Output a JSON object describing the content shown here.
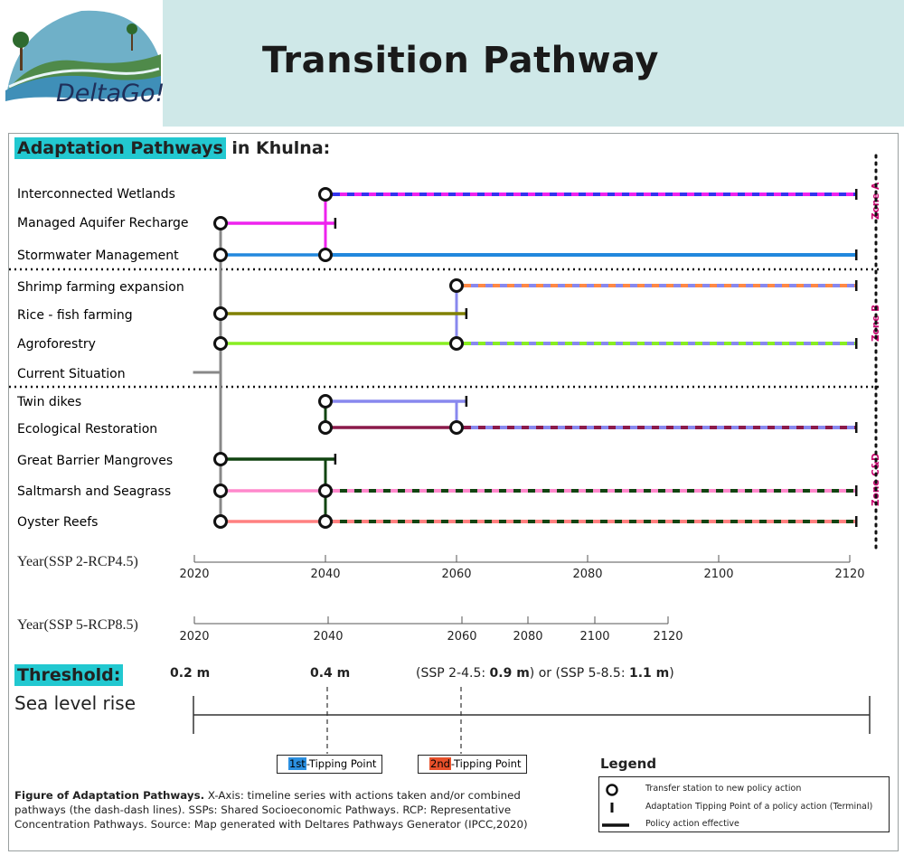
{
  "header": {
    "logo_text": "DeltaGo!",
    "title": "Transition Pathway"
  },
  "heading": {
    "highlight": "Adaptation Pathways",
    "rest": " in Khulna:"
  },
  "zones": [
    "Zone A",
    "Zone B",
    "Zone C&D"
  ],
  "colors": {
    "header_bg": "#cfe8e8",
    "highlight": "#22c8d0",
    "zone_label": "#c8006e",
    "first_tipping": "#2b8fe0",
    "second_tipping": "#e8502a"
  },
  "chart_data": {
    "type": "adaptation-pathways",
    "x_axis_ssp245": {
      "label": "Year(SSP 2-RCP4.5)",
      "ticks": [
        2020,
        2040,
        2060,
        2080,
        2100,
        2120
      ]
    },
    "x_axis_ssp585": {
      "label": "Year(SSP 5-RCP8.5)",
      "ticks": [
        2020,
        2040,
        2060,
        2080,
        2100,
        2120
      ]
    },
    "actions": [
      {
        "name": "Interconnected Wetlands",
        "color": "#3333ee",
        "zone": "Zone A"
      },
      {
        "name": "Managed Aquifer Recharge",
        "color": "#ee22ee",
        "zone": "Zone A"
      },
      {
        "name": "Stormwater Management",
        "color": "#2288dd",
        "zone": "Zone A"
      },
      {
        "name": "Shrimp farming expansion",
        "color": "#ff8844",
        "zone": "Zone B"
      },
      {
        "name": "Rice - fish farming",
        "color": "#808000",
        "zone": "Zone B"
      },
      {
        "name": "Agroforestry",
        "color": "#88ee22",
        "zone": "Zone B"
      },
      {
        "name": "Current Situation",
        "color": "#888888",
        "zone": ""
      },
      {
        "name": "Twin dikes",
        "color": "#8888ee",
        "zone": "Zone C&D"
      },
      {
        "name": "Ecological Restoration",
        "color": "#8b1a4a",
        "zone": "Zone C&D"
      },
      {
        "name": "Great Barrier Mangroves",
        "color": "#114411",
        "zone": "Zone C&D"
      },
      {
        "name": "Saltmarsh and Seagrass",
        "color": "#ff88cc",
        "zone": "Zone C&D"
      },
      {
        "name": "Oyster Reefs",
        "color": "#ff8080",
        "zone": "Zone C&D"
      }
    ],
    "pathways": [
      {
        "action": "Managed Aquifer Recharge",
        "start": 2024,
        "tipping_point": 2041.5
      },
      {
        "action": "Stormwater Management",
        "start": 2024,
        "end": 2121,
        "transfer": 2040
      },
      {
        "action": "Interconnected Wetlands",
        "start": 2040,
        "end": 2121,
        "combined_with": "Managed Aquifer Recharge"
      },
      {
        "action": "Rice - fish farming",
        "start": 2024,
        "tipping_point": 2061.5
      },
      {
        "action": "Agroforestry",
        "start": 2024,
        "end": 2121,
        "transfer": 2060,
        "combined_with": "Twin dikes"
      },
      {
        "action": "Shrimp farming expansion",
        "start": 2060,
        "end": 2121,
        "combined_with": "Twin dikes"
      },
      {
        "action": "Great Barrier Mangroves",
        "start": 2024,
        "tipping_point": 2041.5
      },
      {
        "action": "Twin dikes",
        "start": 2040,
        "tipping_point": 2061.5
      },
      {
        "action": "Ecological Restoration",
        "start": 2040,
        "end": 2121,
        "transfer": 2060
      },
      {
        "action": "Saltmarsh and Seagrass",
        "start": 2024,
        "end": 2121,
        "transfer": 2040,
        "combined_with": "Great Barrier Mangroves"
      },
      {
        "action": "Oyster Reefs",
        "start": 2024,
        "end": 2121,
        "transfer": 2040,
        "combined_with": "Great Barrier Mangroves"
      }
    ]
  },
  "threshold": {
    "title": "Threshold:",
    "subtitle": "Sea level rise",
    "values": [
      "0.2 m",
      "0.4 m"
    ],
    "third_prefix": "(SSP 2-4.5: ",
    "third_a": "0.9 m",
    "third_mid": ") or (SSP 5-8.5: ",
    "third_b": "1.1 m",
    "third_suffix": ")"
  },
  "tipping_points": {
    "first_badge": "1st",
    "first_text": "-Tipping Point",
    "second_badge": "2nd",
    "second_text": "-Tipping Point"
  },
  "caption": {
    "bold": "Figure of Adaptation Pathways.",
    "text": " X-Axis: timeline series with actions taken and/or combined pathways (the dash-dash lines). SSPs: Shared Socioeconomic Pathways. RCP: Representative Concentration Pathways.  Source: Map generated with Deltares Pathways Generator (IPCC,2020)"
  },
  "legend": {
    "title": "Legend",
    "items": [
      "Transfer station to new policy action",
      "Adaptation Tipping Point of a policy action (Terminal)",
      "Policy action effective"
    ]
  }
}
